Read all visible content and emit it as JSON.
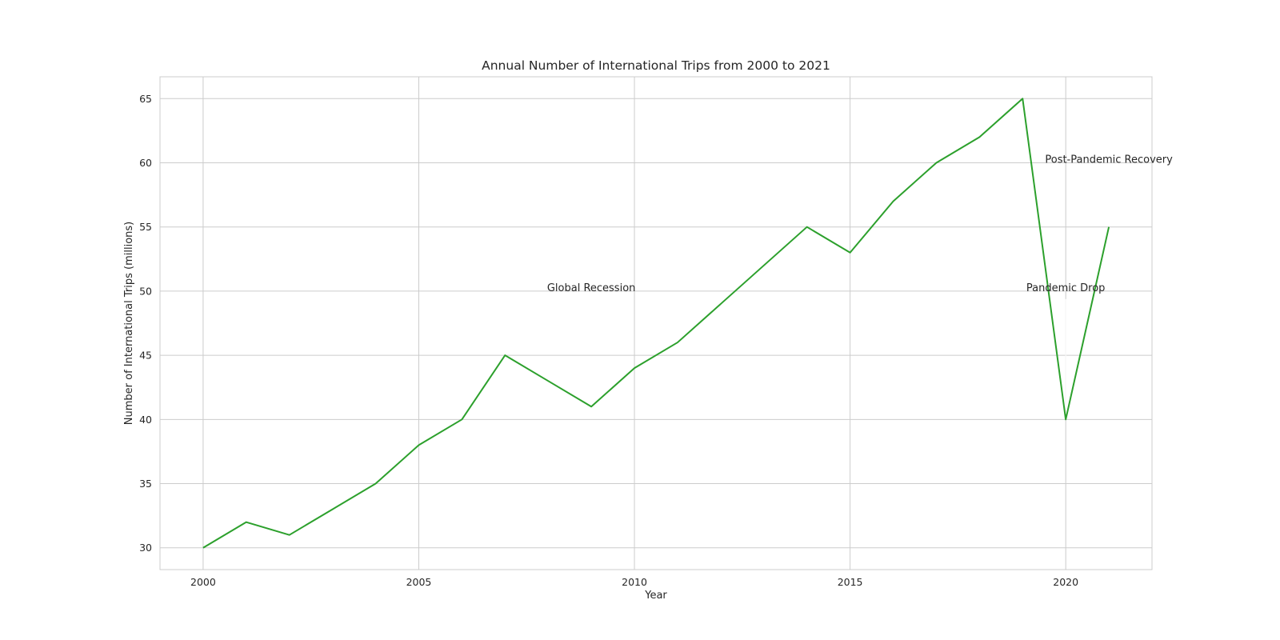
{
  "chart_data": {
    "type": "line",
    "title": "Annual Number of International Trips from 2000 to 2021",
    "xlabel": "Year",
    "ylabel": "Number of International Trips (millions)",
    "xlim": [
      1999,
      2022
    ],
    "ylim": [
      28.3,
      66.7
    ],
    "grid": true,
    "legend": "none",
    "xticks": [
      2000,
      2005,
      2010,
      2015,
      2020
    ],
    "yticks": [
      30,
      35,
      40,
      45,
      50,
      55,
      60,
      65
    ],
    "series": [
      {
        "name": "International Trips",
        "color": "#2ca02c",
        "x": [
          2000,
          2001,
          2002,
          2003,
          2004,
          2005,
          2006,
          2007,
          2008,
          2009,
          2010,
          2011,
          2012,
          2013,
          2014,
          2015,
          2016,
          2017,
          2018,
          2019,
          2020,
          2021
        ],
        "values": [
          30,
          32,
          31,
          33,
          35,
          38,
          40,
          45,
          43,
          41,
          44,
          46,
          49,
          52,
          55,
          53,
          57,
          60,
          62,
          65,
          40,
          55
        ]
      }
    ],
    "annotations": [
      {
        "text": "Global Recession",
        "x": 2009,
        "y": 50,
        "arrow_to": [
          2009,
          45
        ]
      },
      {
        "text": "Pandemic Drop",
        "x": 2020,
        "y": 50,
        "arrow_to": [
          2020,
          40
        ]
      },
      {
        "text": "Post-Pandemic Recovery",
        "x": 2021,
        "y": 60,
        "arrow_to": [
          2021,
          55
        ]
      }
    ]
  }
}
